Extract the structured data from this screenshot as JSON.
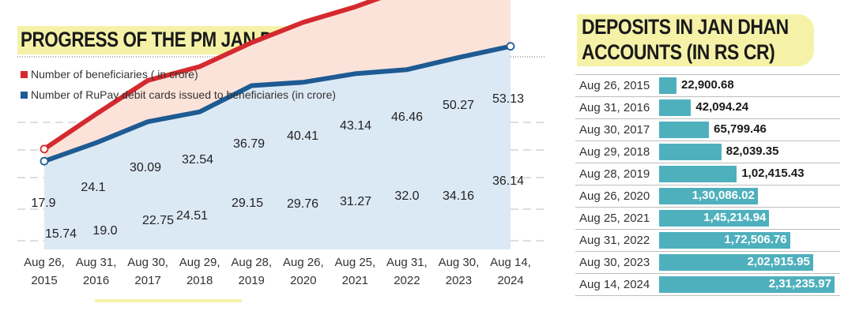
{
  "chart_data": [
    {
      "type": "line",
      "title": "PROGRESS OF THE PM JAN DHAN SCHEME",
      "categories": [
        [
          "Aug 26,",
          "2015"
        ],
        [
          "Aug 31,",
          "2016"
        ],
        [
          "Aug 30,",
          "2017"
        ],
        [
          "Aug 29,",
          "2018"
        ],
        [
          "Aug 28,",
          "2019"
        ],
        [
          "Aug 26,",
          "2020"
        ],
        [
          "Aug 25,",
          "2021"
        ],
        [
          "Aug 31,",
          "2022"
        ],
        [
          "Aug 30,",
          "2023"
        ],
        [
          "Aug 14,",
          "2024"
        ]
      ],
      "series": [
        {
          "name": "Number of beneficiaries ( in crore)",
          "color": "#d42a2f",
          "fill": "#fbe3da",
          "values": [
            17.9,
            24.1,
            30.09,
            32.54,
            36.79,
            40.41,
            43.14,
            46.46,
            50.27,
            53.13
          ],
          "labels": [
            "17.9",
            "24.1",
            "30.09",
            "32.54",
            "36.79",
            "40.41",
            "43.14",
            "46.46",
            "50.27",
            "53.13"
          ]
        },
        {
          "name": "Number of RuPay debit cards issued to beneficiaries (in crore)",
          "color": "#1e5b93",
          "fill": "#dbe9f5",
          "values": [
            15.74,
            19.0,
            22.75,
            24.51,
            29.15,
            29.76,
            31.27,
            32.0,
            34.16,
            36.14
          ],
          "labels": [
            "15.74",
            "19.0",
            "22.75",
            "24.51",
            "29.15",
            "29.76",
            "31.27",
            "32.0",
            "34.16",
            "36.14"
          ]
        }
      ],
      "legend_position": "top-left",
      "grid": true
    },
    {
      "type": "bar",
      "orientation": "horizontal",
      "title": [
        "DEPOSITS IN JAN DHAN",
        "ACCOUNTS (IN RS CR)"
      ],
      "color": "#4fb0bd",
      "categories": [
        "Aug 26, 2015",
        "Aug 31, 2016",
        "Aug 30, 2017",
        "Aug 29, 2018",
        "Aug 28, 2019",
        "Aug 26, 2020",
        "Aug 25, 2021",
        "Aug 31, 2022",
        "Aug 30, 2023",
        "Aug 14, 2024"
      ],
      "values": [
        22900.68,
        42094.24,
        65799.46,
        82039.35,
        102415.43,
        130086.02,
        145214.94,
        172506.76,
        202915.95,
        231235.97
      ],
      "labels": [
        "22,900.68",
        "42,094.24",
        "65,799.46",
        "82,039.35",
        "1,02,415.43",
        "1,30,086.02",
        "1,45,214.94",
        "1,72,506.76",
        "2,02,915.95",
        "2,31,235.97"
      ]
    }
  ]
}
